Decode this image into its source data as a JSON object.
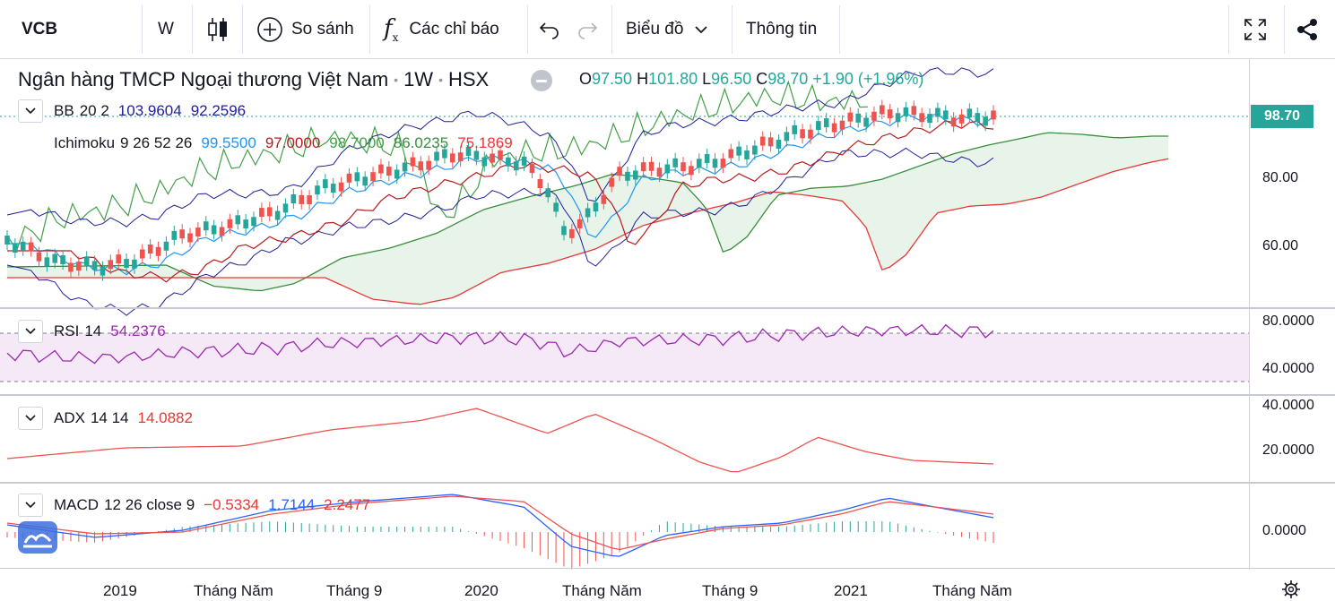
{
  "toolbar": {
    "symbol": "VCB",
    "interval": "W",
    "compare_label": "So sánh",
    "indicators_label": "Các chỉ báo",
    "chart_type_label": "Biểu đồ",
    "info_label": "Thông tin"
  },
  "legend": {
    "title": "Ngân hàng TMCP Ngoại thương Việt Nam",
    "interval": "1W",
    "exchange": "HSX",
    "open_key": "O",
    "open": "97.50",
    "high_key": "H",
    "high": "101.80",
    "low_key": "L",
    "low": "96.50",
    "close_key": "C",
    "close": "98.70",
    "change": "+1.90 (+1.96%)"
  },
  "indicators": {
    "bb": {
      "name": "BB",
      "params": "20 2",
      "upper": "103.9604",
      "lower": "92.2596"
    },
    "ichimoku": {
      "name": "Ichimoku",
      "params": "9 26 52 26",
      "v1": "99.5500",
      "v2": "97.0000",
      "v3": "98.7000",
      "v4": "86.0235",
      "v5": "75.1869"
    },
    "rsi": {
      "name": "RSI",
      "params": "14",
      "value": "54.2376"
    },
    "adx": {
      "name": "ADX",
      "params": "14 14",
      "value": "14.0882"
    },
    "macd": {
      "name": "MACD",
      "params": "12 26 close 9",
      "hist": "−0.5334",
      "macd": "1.7144",
      "signal": "2.2477"
    }
  },
  "price_axis": {
    "current": "98.70",
    "labels": [
      "80.00",
      "60.00"
    ]
  },
  "rsi_axis": [
    "80.0000",
    "40.0000"
  ],
  "adx_axis": [
    "40.0000",
    "20.0000"
  ],
  "macd_axis": [
    "0.0000"
  ],
  "time_axis": [
    "2019",
    "Tháng Năm",
    "Tháng 9",
    "2020",
    "Tháng Năm",
    "Tháng 9",
    "2021",
    "Tháng Năm"
  ],
  "colors": {
    "up": "#26a69a",
    "down": "#ef5350",
    "bb": "#1e1e9a",
    "rsi": "#9c27b0",
    "tenkan": "#2196f3",
    "kijun": "#b71c1c",
    "chikou": "#43a047",
    "span_a": "#388e3c",
    "span_b": "#e53935"
  }
}
